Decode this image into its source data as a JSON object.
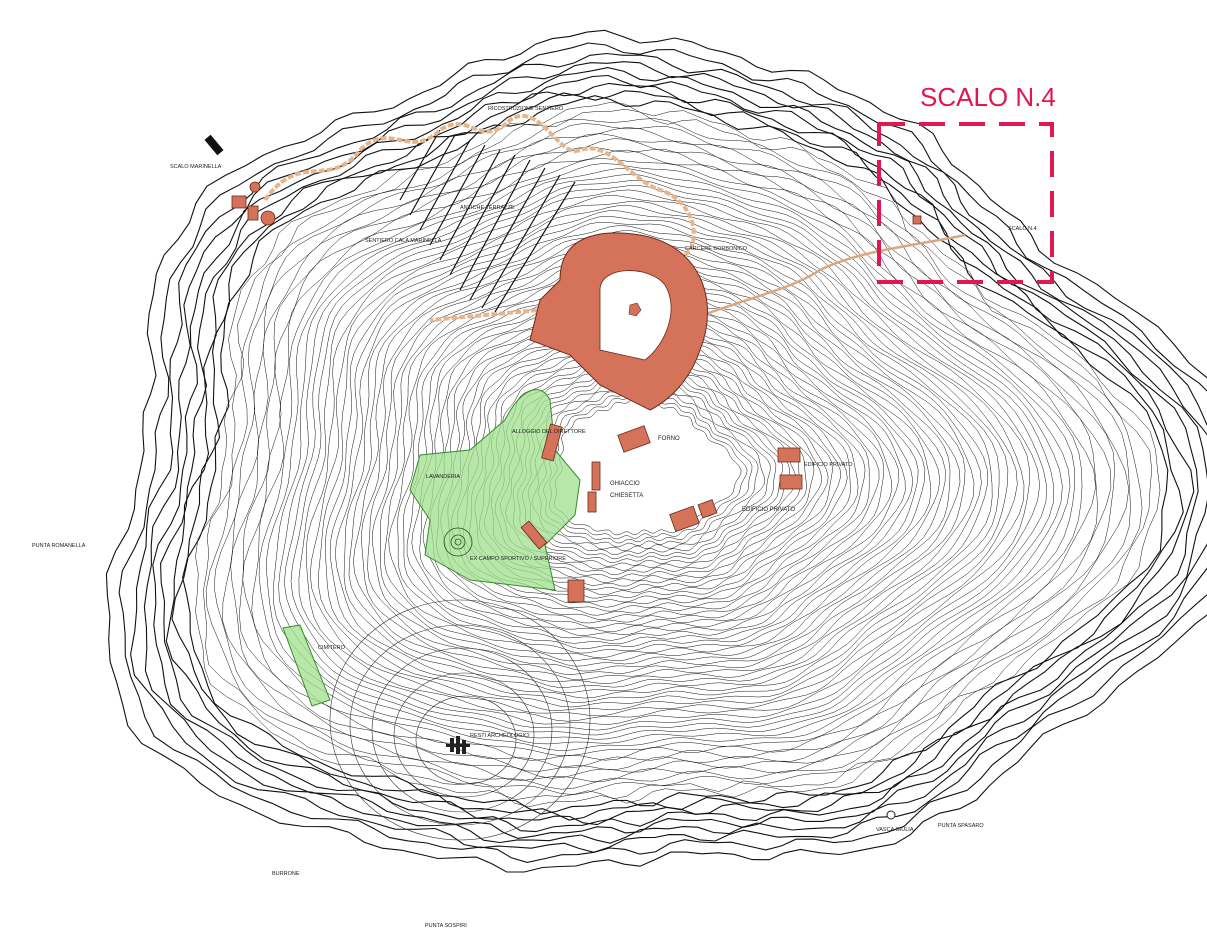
{
  "title": "SCALO N.4",
  "labels": {
    "scalo_marinella": "SCALO MARINELLA",
    "scalo_n4_small": "SCALO N.4",
    "punta_romanella": "PUNTA ROMANELLA",
    "burrone": "BURRONE",
    "punta_sospiri": "PUNTA SOSPIRI",
    "vasca_giulia": "VASCA GIULIA",
    "punta_spasaro": "PUNTA SPASARO",
    "forno": "FORNO",
    "ghiaccio": "GHIACCIO",
    "chiesetta": "CHIESETTA",
    "edificio_privato_1": "EDIFICIO PRIVATO",
    "edificio_privato_2": "EDIFICIO PRIVATO",
    "lavanderia": "LAVANDERIA",
    "alloggio_direttore": "ALLOGGIO DEL DIRETTORE",
    "campo_sportivo": "EX CAMPO SPORTIVO / SUPERIORE",
    "cimitero": "CIMITERO",
    "resti_archeologici": "RESTI ARCHEOLOGICI",
    "carcere": "CARCERE BORBONICO",
    "ricostruzione": "RICOSTRUZIONE SENTIERO",
    "antiche_terrazze": "ANTICHE TERRAZZE",
    "sentiero_marinella": "SENTIERO CALA MARINELLA"
  },
  "colors": {
    "building": "#d4735a",
    "green_area": "#9fe08c",
    "path": "#f2c9a4",
    "highlight": "#e0184f",
    "contour": "#111111"
  }
}
